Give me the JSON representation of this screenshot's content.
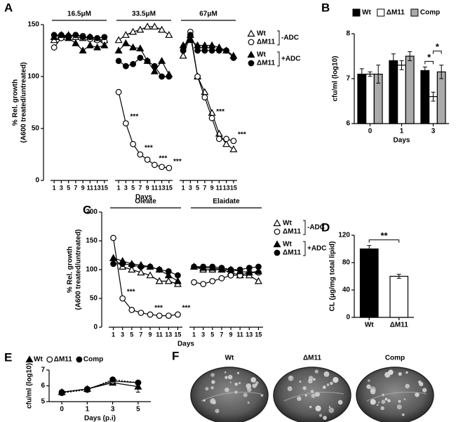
{
  "chart_data": [
    {
      "panel": "A",
      "type": "line",
      "ylabel": [
        "% Rel. growth",
        "(A600 treated/untreated)"
      ],
      "xlabel": "Days",
      "ylim": [
        0,
        150
      ],
      "yticks": [
        0,
        50,
        100,
        150
      ],
      "categories": [
        "1",
        "3",
        "5",
        "7",
        "9",
        "11",
        "13",
        "15"
      ],
      "series": [
        {
          "name": "Wt",
          "marker": "open-triangle",
          "color": "#000000"
        },
        {
          "name": "ΔM11",
          "marker": "open-circle",
          "color": "#000000"
        },
        {
          "name": "Wt",
          "marker": "filled-triangle",
          "color": "#000000"
        },
        {
          "name": "ΔM11",
          "marker": "filled-circle",
          "color": "#000000"
        }
      ],
      "legend_groups": [
        "-ADC",
        "+ADC"
      ],
      "groups": [
        {
          "label": "16.5μM",
          "values": [
            [
              135,
              138,
              140,
              138,
              137,
              138,
              136,
              135
            ],
            [
              128,
              137,
              138,
              140,
              139,
              136,
              135,
              134
            ],
            [
              138,
              140,
              137,
              132,
              125,
              130,
              128,
              130
            ],
            [
              140,
              140,
              139,
              140,
              138,
              138,
              137,
              138
            ]
          ],
          "annotations": []
        },
        {
          "label": "33.5μM",
          "values": [
            [
              135,
              140,
              143,
              145,
              148,
              148,
              145,
              140
            ],
            [
              85,
              55,
              35,
              25,
              20,
              15,
              13,
              12
            ],
            [
              125,
              132,
              128,
              127,
              115,
              105,
              115,
              102
            ],
            [
              115,
              110,
              112,
              118,
              115,
              110,
              100,
              100
            ]
          ],
          "annotations": [
            {
              "text": "***",
              "category": "3"
            },
            {
              "text": "***",
              "category": "7"
            },
            {
              "text": "***",
              "category": "11"
            },
            {
              "text": "***",
              "category": "15"
            }
          ]
        },
        {
          "label": "67μM",
          "values": [
            [
              120,
              140,
              100,
              85,
              65,
              45,
              35,
              30
            ],
            [
              125,
              143,
              100,
              80,
              60,
              40,
              40,
              38
            ],
            [
              130,
              135,
              130,
              130,
              130,
              128,
              125,
              120
            ],
            [
              125,
              140,
              125,
              125,
              125,
              125,
              125,
              118
            ]
          ],
          "annotations": [
            {
              "text": "***",
              "category": "9"
            },
            {
              "text": "***",
              "category": "15"
            }
          ]
        }
      ]
    },
    {
      "panel": "B",
      "type": "bar",
      "ylabel": [
        "cfu/ml (log10)"
      ],
      "xlabel": "Days",
      "ylim": [
        6,
        8
      ],
      "yticks": [
        6,
        7,
        8
      ],
      "categories": [
        "0",
        "1",
        "3"
      ],
      "series": [
        {
          "name": "Wt",
          "color": "#000000",
          "values": [
            7.1,
            7.4,
            7.18
          ],
          "errors": [
            0.12,
            0.15,
            0.08
          ]
        },
        {
          "name": "ΔM11",
          "color": "#ffffff",
          "values": [
            7.1,
            7.3,
            6.6
          ],
          "errors": [
            0.05,
            0.1,
            0.1
          ]
        },
        {
          "name": "Comp",
          "color": "#aaaaaa",
          "values": [
            7.1,
            7.5,
            7.15
          ],
          "errors": [
            0.2,
            0.1,
            0.15
          ]
        }
      ],
      "annotations": [
        "*",
        "*"
      ]
    },
    {
      "panel": "C",
      "type": "line",
      "ylabel": [
        "% Rel. growth",
        "(A600 treated/untreated)"
      ],
      "xlabel": "Days",
      "ylim": [
        0,
        200
      ],
      "yticks": [
        0,
        50,
        100,
        150,
        200
      ],
      "categories": [
        "1",
        "3",
        "5",
        "7",
        "9",
        "11",
        "13",
        "15"
      ],
      "series": [
        {
          "name": "Wt",
          "marker": "open-triangle",
          "color": "#000000"
        },
        {
          "name": "ΔM11",
          "marker": "open-circle",
          "color": "#000000"
        },
        {
          "name": "Wt",
          "marker": "filled-triangle",
          "color": "#000000"
        },
        {
          "name": "ΔM11",
          "marker": "filled-circle",
          "color": "#000000"
        }
      ],
      "legend_groups": [
        "-ADC",
        "+ADC"
      ],
      "groups": [
        {
          "label": "Oleate",
          "values": [
            [
              120,
              105,
              100,
              95,
              90,
              80,
              80,
              75
            ],
            [
              155,
              50,
              30,
              25,
              22,
              20,
              20,
              22
            ],
            [
              120,
              115,
              110,
              108,
              105,
              100,
              90,
              80
            ],
            [
              110,
              110,
              108,
              105,
              105,
              100,
              97,
              90
            ]
          ],
          "annotations": [
            {
              "text": "***",
              "category": "3"
            },
            {
              "text": "***",
              "category": "9"
            },
            {
              "text": "***",
              "category": "15"
            }
          ]
        },
        {
          "label": "Elaidate",
          "values": [
            [
              105,
              100,
              100,
              100,
              95,
              90,
              90,
              80
            ],
            [
              78,
              75,
              80,
              85,
              90,
              90,
              95,
              95
            ],
            [
              105,
              103,
              103,
              100,
              100,
              97,
              95,
              97
            ],
            [
              105,
              105,
              105,
              103,
              100,
              100,
              103,
              105
            ]
          ],
          "annotations": []
        }
      ]
    },
    {
      "panel": "D",
      "type": "bar",
      "ylabel": [
        "CL (μg/mg total lipid)"
      ],
      "ylim": [
        0,
        120
      ],
      "yticks": [
        0,
        40,
        80,
        120
      ],
      "categories": [
        "Wt",
        "ΔM11"
      ],
      "values": [
        100,
        60
      ],
      "errors": [
        5,
        3
      ],
      "colors": [
        "#000000",
        "#ffffff"
      ],
      "annotations": [
        "**"
      ]
    },
    {
      "panel": "E",
      "type": "line",
      "ylabel": [
        "cfu/ml (log10)"
      ],
      "xlabel": "Days (p.i)",
      "ylim": [
        5,
        7
      ],
      "yticks": [
        5,
        6,
        7
      ],
      "categories": [
        "0",
        "1",
        "3",
        "5"
      ],
      "series": [
        {
          "name": "Wt",
          "marker": "filled-triangle",
          "color": "#000000",
          "values": [
            5.6,
            5.8,
            6.2,
            5.95
          ],
          "errors": [
            0.03,
            0.05,
            0.1,
            0.35
          ]
        },
        {
          "name": "ΔM11",
          "marker": "open-circle",
          "color": "#000000",
          "values": [
            5.6,
            5.8,
            6.3,
            6.2
          ],
          "errors": [
            0.03,
            0.05,
            0.08,
            0.08
          ]
        },
        {
          "name": "Comp",
          "marker": "filled-circle",
          "color": "#000000",
          "dash": "dotted",
          "values": [
            5.55,
            5.75,
            6.4,
            6.2
          ],
          "errors": [
            0.03,
            0.05,
            0.05,
            0.08
          ]
        }
      ]
    },
    {
      "panel": "F",
      "type": "plates",
      "labels": [
        "Wt",
        "ΔM11",
        "Comp"
      ]
    }
  ]
}
